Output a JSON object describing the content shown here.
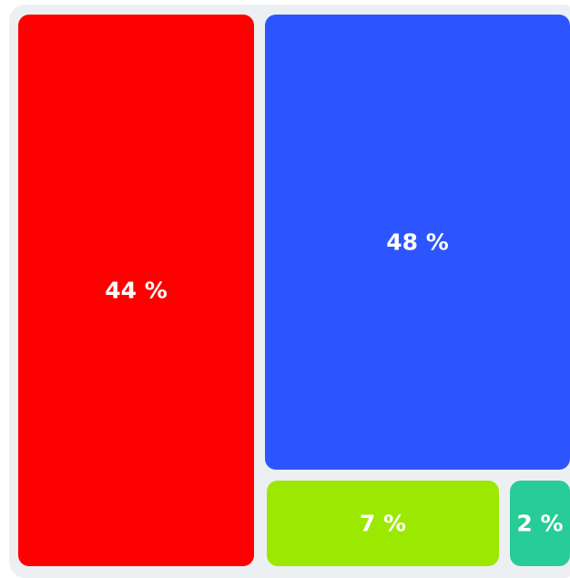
{
  "chart_data": {
    "type": "treemap",
    "items": [
      {
        "value": 44,
        "label": "44 %",
        "color": "#ff0000"
      },
      {
        "value": 48,
        "label": "48 %",
        "color": "#2d55ff"
      },
      {
        "value": 7,
        "label": "7 %",
        "color": "#9be800"
      },
      {
        "value": 2,
        "label": "2 %",
        "color": "#27cc96"
      }
    ],
    "background_color": "#edf0f2"
  }
}
